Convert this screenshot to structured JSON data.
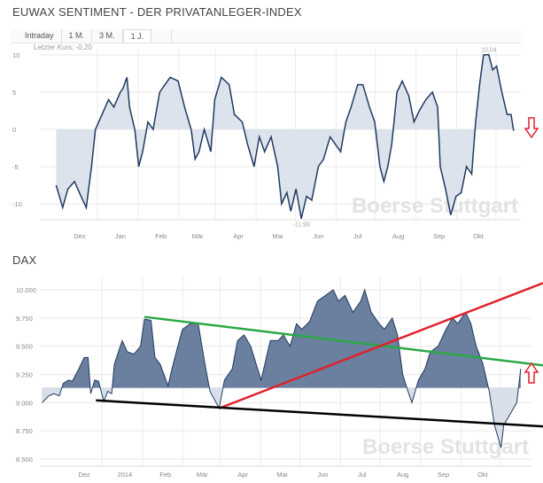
{
  "header": {
    "title": "EUWAX SENTIMENT - DER PRIVATANLEGER-INDEX",
    "tabs": [
      {
        "label": "Intraday"
      },
      {
        "label": "1 M."
      },
      {
        "label": "3 M."
      },
      {
        "label": "1 J.",
        "active": true
      }
    ],
    "last_price": "Letzter Kurs: -0,20"
  },
  "watermark": "Boerse Stuttgart",
  "colors": {
    "line": "#1f3a60",
    "fill_top": "#dde3ec",
    "fill_dax": "#6b7f9f",
    "green": "#2aa845",
    "red": "#e0212b",
    "black": "#000000",
    "arrow": "#e0212b"
  },
  "chart_data": [
    {
      "type": "area",
      "title": "EUWAX SENTIMENT - DER PRIVATANLEGER-INDEX",
      "ylim": [
        -12.5,
        11.5
      ],
      "yticks": [
        10,
        5,
        0,
        -5,
        -10
      ],
      "ytick_labels": [
        "10",
        "5",
        "0",
        "-5",
        "-10"
      ],
      "xtick_labels": [
        "Dez",
        "Jan",
        "Feb",
        "Mär",
        "Apr",
        "Mai",
        "Jun",
        "Jul",
        "Aug",
        "Sep",
        "Okt"
      ],
      "xticks": [
        "2013-12-01",
        "2014-01-01",
        "2014-02-01",
        "2014-03-01",
        "2014-04-01",
        "2014-05-01",
        "2014-06-01",
        "2014-07-01",
        "2014-08-01",
        "2014-09-01",
        "2014-10-01"
      ],
      "baseline": 0,
      "grid": true,
      "annotations": [
        {
          "text": "10,04",
          "date": "2014-10-09",
          "value": 10.04
        },
        {
          "text": "-11,99",
          "date": "2014-05-19",
          "value": -11.99
        }
      ],
      "signal": "down-arrow",
      "points": [
        [
          "2013-11-13",
          -7.5
        ],
        [
          "2013-11-18",
          -10.5
        ],
        [
          "2013-11-22",
          -8
        ],
        [
          "2013-11-27",
          -7
        ],
        [
          "2013-12-02",
          -9
        ],
        [
          "2013-12-06",
          -10.5
        ],
        [
          "2013-12-10",
          -5
        ],
        [
          "2013-12-13",
          0
        ],
        [
          "2013-12-18",
          2
        ],
        [
          "2013-12-23",
          4
        ],
        [
          "2013-12-27",
          3
        ],
        [
          "2014-01-01",
          5
        ],
        [
          "2014-01-03",
          5.5
        ],
        [
          "2014-01-06",
          7
        ],
        [
          "2014-01-08",
          3
        ],
        [
          "2014-01-12",
          0
        ],
        [
          "2014-01-15",
          -5
        ],
        [
          "2014-01-18",
          -3
        ],
        [
          "2014-01-22",
          1
        ],
        [
          "2014-01-26",
          0
        ],
        [
          "2014-01-31",
          5
        ],
        [
          "2014-02-04",
          6
        ],
        [
          "2014-02-08",
          7
        ],
        [
          "2014-02-14",
          6.5
        ],
        [
          "2014-02-19",
          3
        ],
        [
          "2014-02-24",
          0
        ],
        [
          "2014-02-27",
          -4
        ],
        [
          "2014-03-02",
          -3
        ],
        [
          "2014-03-06",
          0
        ],
        [
          "2014-03-11",
          -3
        ],
        [
          "2014-03-14",
          4
        ],
        [
          "2014-03-19",
          7
        ],
        [
          "2014-03-25",
          6
        ],
        [
          "2014-03-29",
          2
        ],
        [
          "2014-04-04",
          1
        ],
        [
          "2014-04-08",
          -2
        ],
        [
          "2014-04-13",
          -5
        ],
        [
          "2014-04-17",
          -1
        ],
        [
          "2014-04-21",
          -3
        ],
        [
          "2014-04-26",
          -1
        ],
        [
          "2014-05-01",
          -5
        ],
        [
          "2014-05-04",
          -10
        ],
        [
          "2014-05-08",
          -8.5
        ],
        [
          "2014-05-11",
          -11
        ],
        [
          "2014-05-15",
          -8
        ],
        [
          "2014-05-19",
          -11.99
        ],
        [
          "2014-05-23",
          -9
        ],
        [
          "2014-05-27",
          -9.5
        ],
        [
          "2014-06-01",
          -5
        ],
        [
          "2014-06-05",
          -4
        ],
        [
          "2014-06-10",
          -1
        ],
        [
          "2014-06-14",
          -2
        ],
        [
          "2014-06-18",
          -3
        ],
        [
          "2014-06-22",
          1
        ],
        [
          "2014-06-26",
          3
        ],
        [
          "2014-07-01",
          6
        ],
        [
          "2014-07-05",
          6
        ],
        [
          "2014-07-10",
          3
        ],
        [
          "2014-07-14",
          1
        ],
        [
          "2014-07-18",
          -5
        ],
        [
          "2014-07-21",
          -7
        ],
        [
          "2014-07-24",
          -5
        ],
        [
          "2014-07-27",
          -2
        ],
        [
          "2014-07-31",
          5
        ],
        [
          "2014-08-04",
          6.5
        ],
        [
          "2014-08-09",
          4.5
        ],
        [
          "2014-08-13",
          1
        ],
        [
          "2014-08-17",
          2.5
        ],
        [
          "2014-08-22",
          4
        ],
        [
          "2014-08-27",
          5
        ],
        [
          "2014-08-31",
          3
        ],
        [
          "2014-09-02",
          -5
        ],
        [
          "2014-09-06",
          -8
        ],
        [
          "2014-09-10",
          -11.5
        ],
        [
          "2014-09-14",
          -9
        ],
        [
          "2014-09-18",
          -8.5
        ],
        [
          "2014-09-22",
          -5
        ],
        [
          "2014-09-26",
          -6
        ],
        [
          "2014-09-29",
          1
        ],
        [
          "2014-10-02",
          6
        ],
        [
          "2014-10-05",
          10
        ],
        [
          "2014-10-09",
          10.04
        ],
        [
          "2014-10-12",
          8
        ],
        [
          "2014-10-15",
          8.5
        ],
        [
          "2014-10-19",
          5
        ],
        [
          "2014-10-23",
          2
        ],
        [
          "2014-10-26",
          2
        ],
        [
          "2014-10-28",
          -0.2
        ]
      ]
    },
    {
      "type": "area",
      "title": "DAX",
      "ylim": [
        8450,
        10100
      ],
      "yticks": [
        10000,
        9750,
        9500,
        9250,
        9000,
        8750,
        8500
      ],
      "ytick_labels": [
        "10.000",
        "9.750",
        "9.500",
        "9.250",
        "9.000",
        "8.750",
        "8.500"
      ],
      "xtick_labels": [
        "Dez",
        "2014",
        "Feb",
        "Mär",
        "Apr",
        "Mai",
        "Jun",
        "Jul",
        "Aug",
        "Sep",
        "Okt"
      ],
      "xticks": [
        "2013-12-01",
        "2014-01-01",
        "2014-02-01",
        "2014-03-01",
        "2014-04-01",
        "2014-05-01",
        "2014-06-01",
        "2014-07-01",
        "2014-08-01",
        "2014-09-01",
        "2014-10-01"
      ],
      "baseline": 9130,
      "grid": true,
      "signal": "up-arrow",
      "trendlines": [
        {
          "color": "green",
          "points": [
            [
              "2014-01-16",
              9760
            ],
            [
              "2014-11-16",
              9330
            ]
          ]
        },
        {
          "color": "red",
          "points": [
            [
              "2014-03-14",
              8950
            ],
            [
              "2014-11-16",
              10060
            ]
          ]
        },
        {
          "color": "black",
          "points": [
            [
              "2013-12-10",
              9020
            ],
            [
              "2014-11-16",
              8790
            ]
          ]
        }
      ],
      "points": [
        [
          "2013-10-30",
          9000
        ],
        [
          "2013-11-04",
          9060
        ],
        [
          "2013-11-08",
          9080
        ],
        [
          "2013-11-12",
          9060
        ],
        [
          "2013-11-15",
          9170
        ],
        [
          "2013-11-19",
          9200
        ],
        [
          "2013-11-22",
          9190
        ],
        [
          "2013-11-27",
          9300
        ],
        [
          "2013-12-01",
          9400
        ],
        [
          "2013-12-04",
          9400
        ],
        [
          "2013-12-06",
          9080
        ],
        [
          "2013-12-09",
          9200
        ],
        [
          "2013-12-12",
          9190
        ],
        [
          "2013-12-16",
          9010
        ],
        [
          "2013-12-19",
          9100
        ],
        [
          "2013-12-22",
          9080
        ],
        [
          "2013-12-24",
          9340
        ],
        [
          "2013-12-30",
          9550
        ],
        [
          "2014-01-03",
          9450
        ],
        [
          "2014-01-08",
          9430
        ],
        [
          "2014-01-13",
          9500
        ],
        [
          "2014-01-16",
          9740
        ],
        [
          "2014-01-21",
          9730
        ],
        [
          "2014-01-24",
          9400
        ],
        [
          "2014-01-28",
          9340
        ],
        [
          "2014-02-03",
          9150
        ],
        [
          "2014-02-06",
          9300
        ],
        [
          "2014-02-10",
          9480
        ],
        [
          "2014-02-14",
          9650
        ],
        [
          "2014-02-20",
          9700
        ],
        [
          "2014-02-26",
          9700
        ],
        [
          "2014-03-03",
          9350
        ],
        [
          "2014-03-07",
          9100
        ],
        [
          "2014-03-14",
          8950
        ],
        [
          "2014-03-18",
          9200
        ],
        [
          "2014-03-24",
          9300
        ],
        [
          "2014-03-28",
          9550
        ],
        [
          "2014-04-02",
          9600
        ],
        [
          "2014-04-07",
          9500
        ],
        [
          "2014-04-11",
          9350
        ],
        [
          "2014-04-15",
          9200
        ],
        [
          "2014-04-22",
          9550
        ],
        [
          "2014-04-28",
          9550
        ],
        [
          "2014-05-02",
          9600
        ],
        [
          "2014-05-07",
          9500
        ],
        [
          "2014-05-12",
          9700
        ],
        [
          "2014-05-16",
          9650
        ],
        [
          "2014-05-22",
          9720
        ],
        [
          "2014-05-28",
          9900
        ],
        [
          "2014-06-03",
          9950
        ],
        [
          "2014-06-09",
          10000
        ],
        [
          "2014-06-13",
          9900
        ],
        [
          "2014-06-18",
          9950
        ],
        [
          "2014-06-24",
          9800
        ],
        [
          "2014-06-30",
          9900
        ],
        [
          "2014-07-03",
          10000
        ],
        [
          "2014-07-08",
          9800
        ],
        [
          "2014-07-14",
          9700
        ],
        [
          "2014-07-18",
          9650
        ],
        [
          "2014-07-24",
          9750
        ],
        [
          "2014-07-28",
          9600
        ],
        [
          "2014-08-01",
          9250
        ],
        [
          "2014-08-05",
          9100
        ],
        [
          "2014-08-08",
          9000
        ],
        [
          "2014-08-13",
          9200
        ],
        [
          "2014-08-18",
          9300
        ],
        [
          "2014-08-22",
          9450
        ],
        [
          "2014-08-28",
          9500
        ],
        [
          "2014-09-03",
          9650
        ],
        [
          "2014-09-08",
          9750
        ],
        [
          "2014-09-12",
          9700
        ],
        [
          "2014-09-18",
          9800
        ],
        [
          "2014-09-22",
          9700
        ],
        [
          "2014-09-26",
          9500
        ],
        [
          "2014-10-01",
          9350
        ],
        [
          "2014-10-06",
          9100
        ],
        [
          "2014-10-10",
          8800
        ],
        [
          "2014-10-15",
          8600
        ],
        [
          "2014-10-17",
          8800
        ],
        [
          "2014-10-22",
          8900
        ],
        [
          "2014-10-27",
          9000
        ],
        [
          "2014-10-30",
          9300
        ]
      ]
    }
  ]
}
